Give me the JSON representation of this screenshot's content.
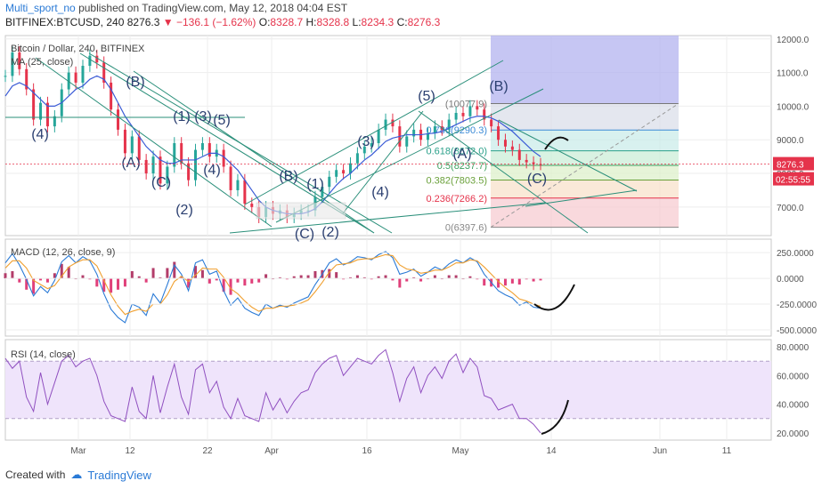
{
  "header": {
    "author": "Multi_sport_no",
    "published": "published on TradingView.com, May 12, 2018 04:04 EST",
    "symbol": "BITFINEX:BTCUSD, 240",
    "price": "8276.3",
    "change": "−136.1 (−1.62%)",
    "o_label": "O:",
    "o_value": "8328.7",
    "h_label": "H:",
    "h_value": "8328.8",
    "l_label": "L:",
    "l_value": "8234.3",
    "c_label": "C:",
    "c_value": "8276.3"
  },
  "footer": {
    "created_with": "Created with",
    "brand": "TradingView"
  },
  "colors": {
    "up": "#26a69a",
    "down": "#e5334b",
    "ma": "#3b5bd6",
    "trend": "#2a8f7a",
    "macd": "#2a7ad6",
    "signal": "#f0a030",
    "rsi": "#9050c0",
    "rsi_band": "#efe4fb"
  },
  "chart_data": [
    {
      "type": "line",
      "title": "Bitcoin / Dollar, 240, BITFINEX",
      "indicator": "MA (25, close)",
      "x_ticks": [
        "Mar",
        "12",
        "22",
        "Apr",
        "16",
        "May",
        "14",
        "Jun",
        "11"
      ],
      "y_ticks": [
        "7000.0",
        "8000.0",
        "9000.0",
        "10000.0",
        "11000.0",
        "12000.0"
      ],
      "ylim": [
        6150,
        12100
      ],
      "last_price_label": "8276.3",
      "countdown_label": "02:55:55",
      "x": [
        0,
        3,
        6,
        9,
        12,
        15,
        18,
        21,
        24,
        27,
        30,
        33,
        36,
        39,
        42,
        45,
        48,
        51,
        54,
        57,
        60,
        63,
        66,
        69,
        72,
        75,
        78,
        81,
        84,
        87,
        90,
        93,
        96,
        99,
        102,
        105,
        108,
        111,
        114,
        117,
        120,
        123,
        126,
        129,
        132,
        135,
        138,
        141,
        144,
        147,
        150,
        153,
        156,
        159,
        162,
        165,
        168,
        171,
        174,
        177,
        180,
        183,
        186,
        189,
        192,
        195,
        198,
        201,
        204,
        207,
        210,
        213,
        216,
        219,
        222,
        225,
        228
      ],
      "close": [
        10900,
        11600,
        11100,
        10500,
        9600,
        10100,
        9400,
        9700,
        10500,
        11000,
        10700,
        11200,
        11500,
        11300,
        10700,
        9900,
        9300,
        8600,
        9100,
        8400,
        8000,
        8500,
        7700,
        8200,
        8900,
        8300,
        7800,
        8700,
        8900,
        8500,
        8700,
        8200,
        7500,
        7800,
        7100,
        7000,
        6700,
        7000,
        6800,
        6900,
        6700,
        6800,
        6900,
        6900,
        7300,
        7600,
        7900,
        8100,
        8000,
        8300,
        8600,
        8800,
        8900,
        9300,
        9600,
        9400,
        8800,
        9100,
        9300,
        9000,
        9200,
        9400,
        9300,
        9600,
        9800,
        9700,
        10000,
        9900,
        9600,
        9400,
        9000,
        8800,
        8700,
        8400,
        8330,
        8280,
        8276
      ],
      "ma25": [
        10300,
        10600,
        10700,
        10600,
        10400,
        10200,
        10000,
        10000,
        10100,
        10300,
        10500,
        10600,
        10800,
        10900,
        10800,
        10500,
        10100,
        9700,
        9400,
        9100,
        8800,
        8600,
        8400,
        8300,
        8300,
        8400,
        8400,
        8400,
        8500,
        8600,
        8600,
        8500,
        8300,
        8100,
        7800,
        7500,
        7200,
        7000,
        6900,
        6850,
        6800,
        6800,
        6800,
        6850,
        6950,
        7150,
        7400,
        7650,
        7850,
        8000,
        8200,
        8400,
        8550,
        8750,
        8950,
        9050,
        9100,
        9150,
        9150,
        9150,
        9180,
        9200,
        9250,
        9350,
        9450,
        9550,
        9650,
        9700,
        9700,
        9650,
        9550,
        9400,
        9250,
        9050,
        8850,
        8650,
        8500
      ],
      "fibonacci": [
        {
          "label": "0(6397.6)",
          "price": 6397.6
        },
        {
          "label": "0.236(7266.2)",
          "price": 7266.2
        },
        {
          "label": "0.382(7803.5)",
          "price": 7803.5
        },
        {
          "label": "0.5(8237.7)",
          "price": 8237.7
        },
        {
          "label": "0.618(8672.0)",
          "price": 8672.0
        },
        {
          "label": "0.786(9290.3)",
          "price": 9290.3
        },
        {
          "label": "(10077.9)",
          "price": 10077.9
        }
      ],
      "wave_labels": [
        "(4)",
        "(B)",
        "(A)",
        "(C)",
        "(2)",
        "(1)",
        "(3)",
        "(5)",
        "(4)",
        "(B)",
        "(1)",
        "(C)",
        "(2)",
        "(3)",
        "(4)",
        "(5)",
        "(A)",
        "(B)",
        "(C)"
      ]
    },
    {
      "type": "line",
      "title": "MACD (12, 26, close, 9)",
      "y_ticks": [
        "250.0000",
        "0.0000",
        "-250.0000",
        "-500.0000"
      ],
      "ylim": [
        -560,
        380
      ],
      "macd": [
        150,
        240,
        130,
        -10,
        -170,
        -80,
        -140,
        -20,
        160,
        220,
        150,
        210,
        170,
        40,
        -150,
        -300,
        -380,
        -430,
        -250,
        -280,
        -360,
        -150,
        -240,
        -60,
        130,
        40,
        -120,
        150,
        180,
        40,
        70,
        -120,
        -260,
        -190,
        -290,
        -330,
        -360,
        -250,
        -290,
        -260,
        -280,
        -240,
        -210,
        -180,
        -60,
        40,
        150,
        190,
        130,
        160,
        210,
        200,
        180,
        230,
        260,
        200,
        40,
        60,
        90,
        20,
        60,
        110,
        80,
        140,
        180,
        150,
        200,
        160,
        40,
        -40,
        -120,
        -160,
        -190,
        -260,
        -230,
        -280,
        -290
      ],
      "signal": [
        100,
        170,
        170,
        100,
        -20,
        -60,
        -100,
        -70,
        20,
        110,
        150,
        180,
        180,
        120,
        -20,
        -160,
        -270,
        -350,
        -320,
        -300,
        -320,
        -250,
        -250,
        -160,
        -30,
        20,
        -30,
        30,
        100,
        90,
        90,
        10,
        -100,
        -150,
        -220,
        -280,
        -320,
        -290,
        -290,
        -270,
        -270,
        -260,
        -240,
        -210,
        -130,
        -40,
        60,
        130,
        140,
        150,
        180,
        190,
        190,
        210,
        230,
        220,
        130,
        90,
        80,
        50,
        60,
        80,
        80,
        110,
        150,
        150,
        180,
        170,
        110,
        40,
        -30,
        -90,
        -140,
        -200,
        -220,
        -250,
        -270
      ]
    },
    {
      "type": "line",
      "title": "RSI (14, close)",
      "y_ticks": [
        "80.0000",
        "60.0000",
        "40.0000",
        "20.0000"
      ],
      "ylim": [
        15,
        85
      ],
      "band": [
        30,
        70
      ],
      "rsi": [
        72,
        65,
        70,
        45,
        35,
        62,
        40,
        55,
        70,
        74,
        66,
        70,
        72,
        60,
        42,
        32,
        30,
        28,
        52,
        35,
        30,
        60,
        34,
        52,
        68,
        45,
        33,
        64,
        68,
        48,
        56,
        38,
        30,
        44,
        32,
        30,
        28,
        48,
        36,
        44,
        34,
        42,
        48,
        50,
        62,
        68,
        72,
        74,
        60,
        66,
        72,
        70,
        68,
        74,
        78,
        62,
        42,
        58,
        66,
        48,
        60,
        66,
        58,
        70,
        75,
        62,
        72,
        66,
        46,
        44,
        36,
        38,
        40,
        30,
        30,
        26,
        20
      ]
    }
  ]
}
